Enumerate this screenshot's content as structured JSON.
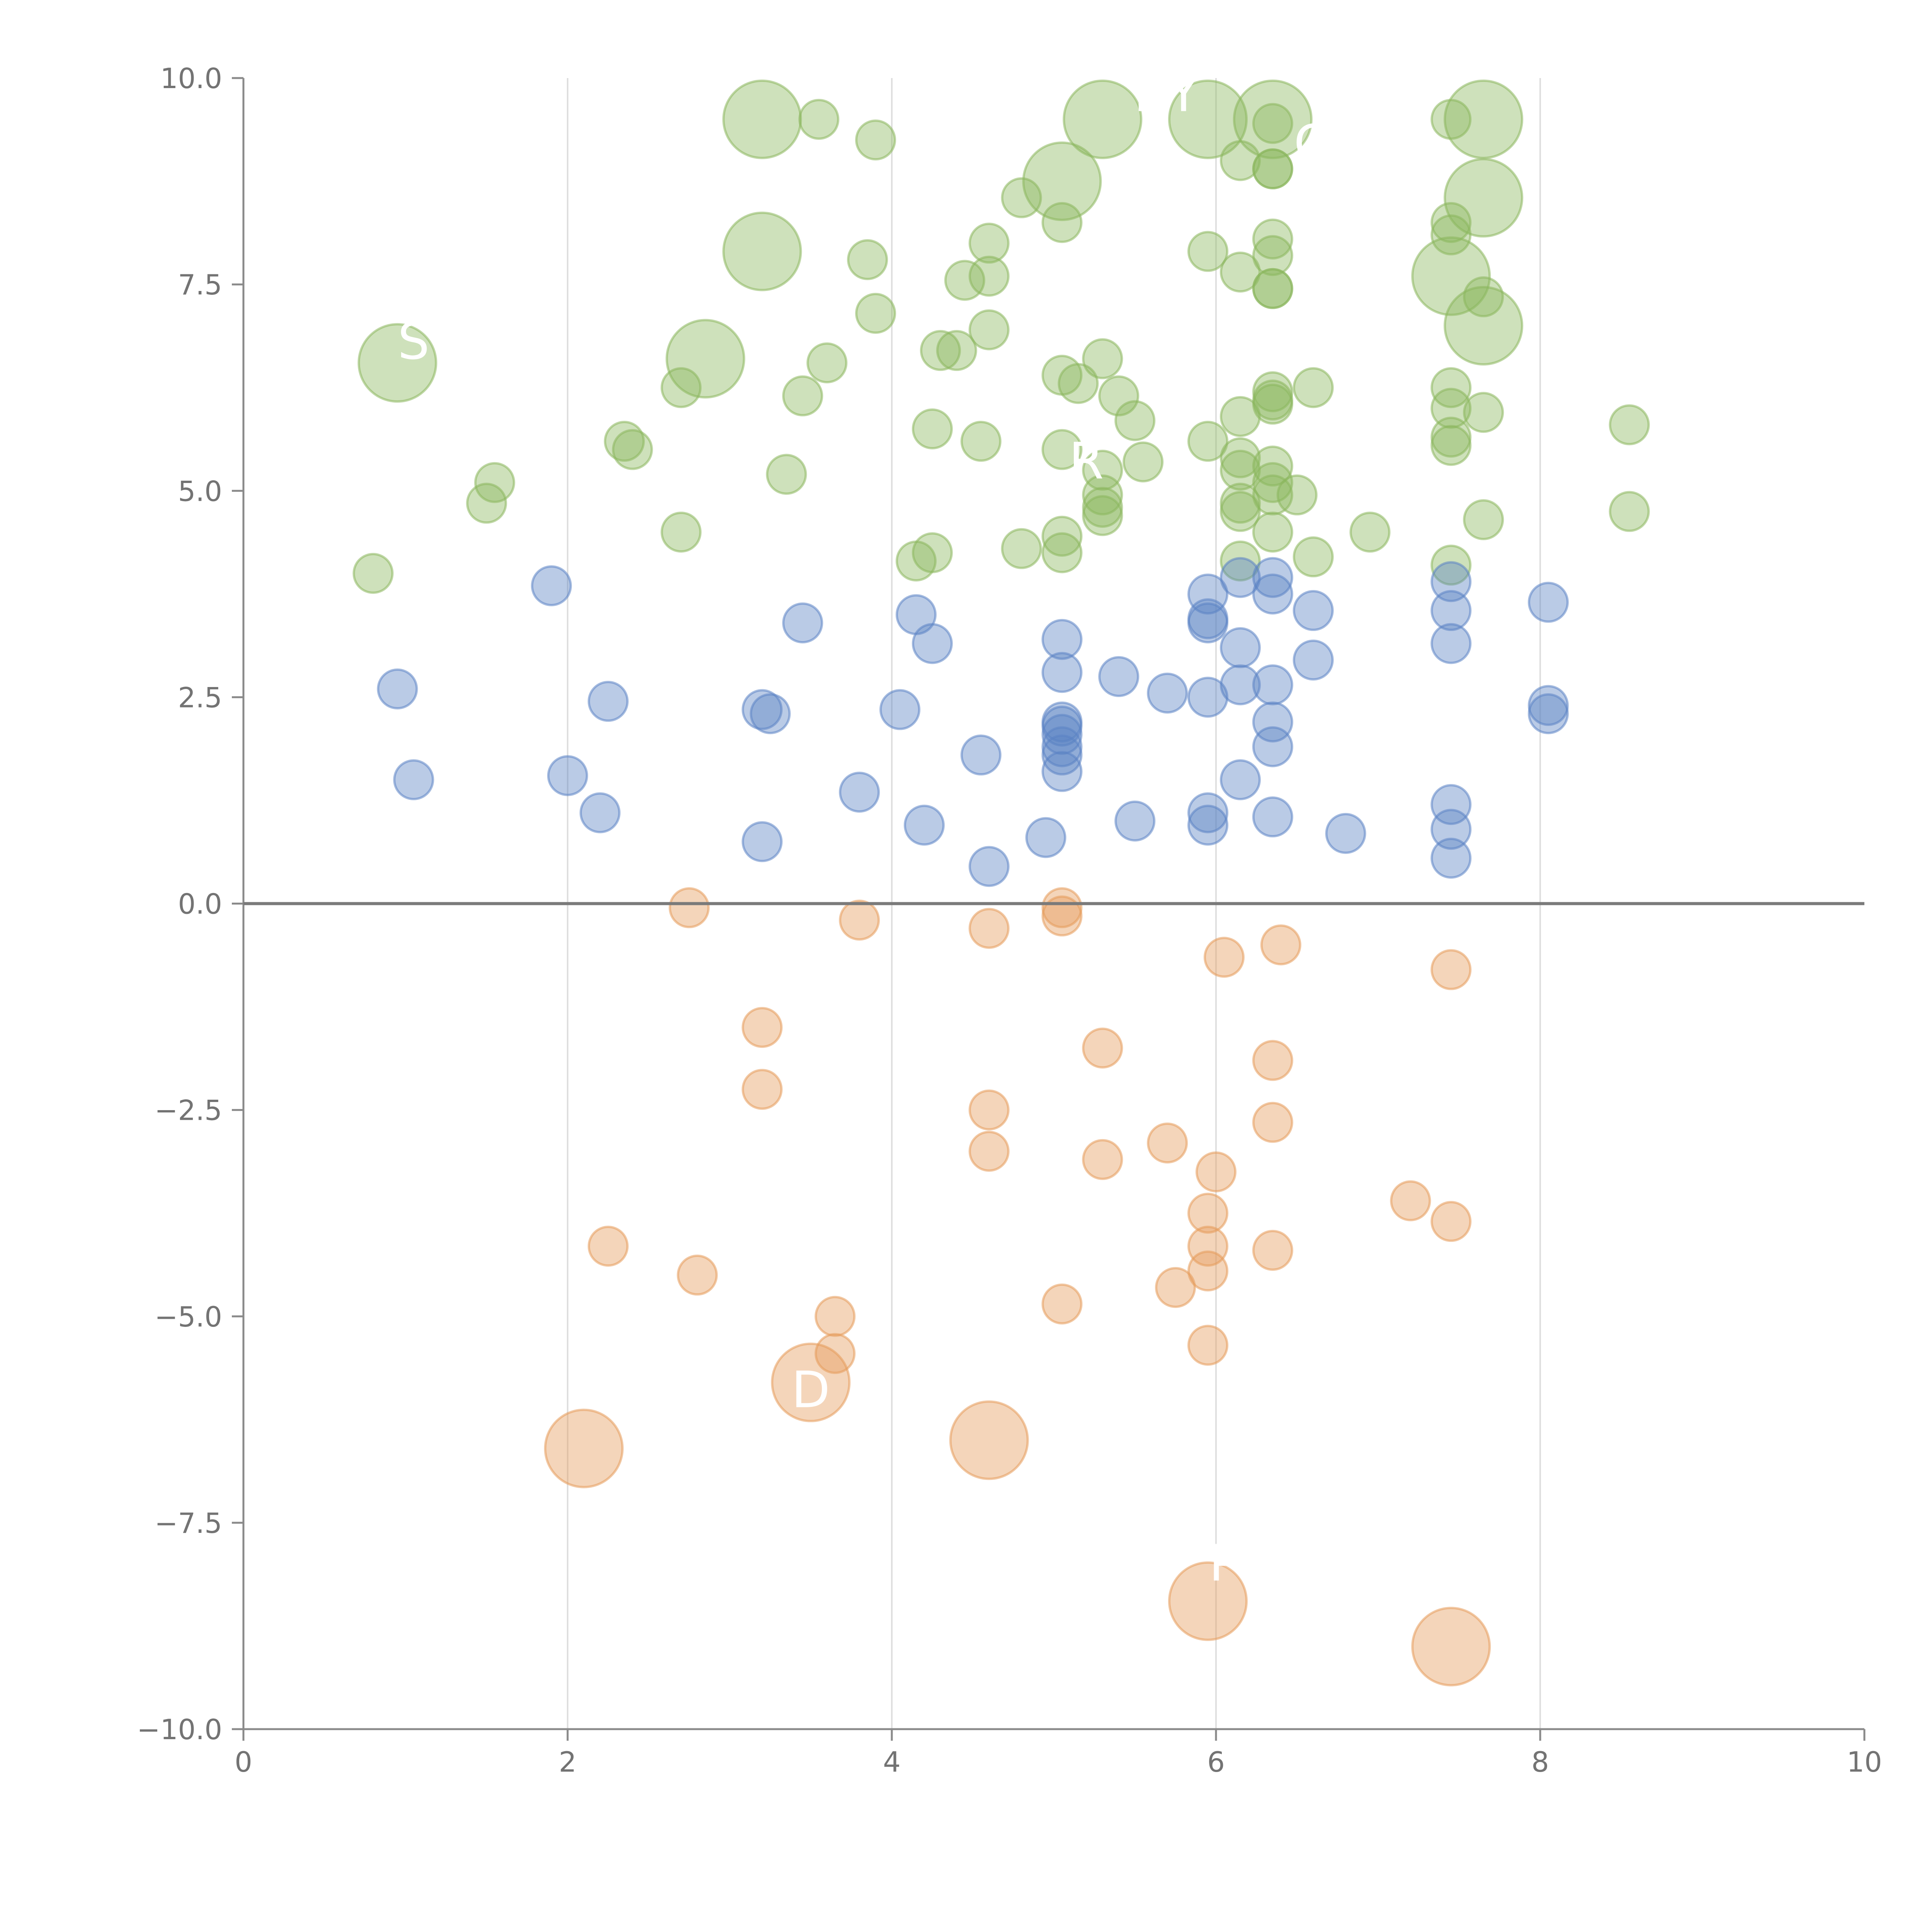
{
  "chart_data": {
    "type": "scatter",
    "title": "",
    "xlabel": "",
    "ylabel": "",
    "xlim": [
      0,
      10
    ],
    "ylim": [
      -10,
      10
    ],
    "x_ticks": [
      "0",
      "2",
      "4",
      "6",
      "8",
      "10"
    ],
    "y_ticks": [
      "−10.0",
      "−7.5",
      "−5.0",
      "−2.5",
      "0.0",
      "2.5",
      "5.0",
      "7.5",
      "10.0"
    ],
    "vertical_gridlines_at": [
      2,
      4,
      6,
      8
    ],
    "zero_line": true,
    "colors": {
      "green": "#8ab75c",
      "blue": "#5b84c4",
      "orange": "#e59a5a"
    },
    "series": [
      {
        "color": "green",
        "points": [
          [
            3.2,
            9.5,
            2
          ],
          [
            3.55,
            9.5,
            1
          ],
          [
            3.9,
            9.25,
            1
          ],
          [
            5.3,
            9.5,
            2
          ],
          [
            5.95,
            9.5,
            2
          ],
          [
            6.35,
            9.5,
            2
          ],
          [
            6.35,
            9.45,
            1
          ],
          [
            7.45,
            9.5,
            1
          ],
          [
            7.65,
            9.5,
            2
          ],
          [
            6.15,
            9.0,
            1
          ],
          [
            6.35,
            8.9,
            1
          ],
          [
            6.35,
            8.9,
            1
          ],
          [
            5.05,
            8.75,
            2
          ],
          [
            4.8,
            8.55,
            1
          ],
          [
            7.65,
            8.55,
            2
          ],
          [
            5.05,
            8.25,
            1
          ],
          [
            7.45,
            8.25,
            1
          ],
          [
            7.45,
            8.1,
            1
          ],
          [
            6.35,
            8.05,
            1
          ],
          [
            4.6,
            8.0,
            1
          ],
          [
            3.2,
            7.9,
            2
          ],
          [
            5.95,
            7.9,
            1
          ],
          [
            3.85,
            7.8,
            1
          ],
          [
            6.35,
            7.85,
            1
          ],
          [
            6.15,
            7.65,
            1
          ],
          [
            7.45,
            7.6,
            2
          ],
          [
            4.45,
            7.55,
            1
          ],
          [
            4.6,
            7.6,
            1
          ],
          [
            6.35,
            7.45,
            1
          ],
          [
            6.35,
            7.45,
            1
          ],
          [
            7.65,
            7.35,
            1
          ],
          [
            3.9,
            7.15,
            1
          ],
          [
            7.65,
            7.0,
            2
          ],
          [
            4.6,
            6.95,
            1
          ],
          [
            4.3,
            6.7,
            1
          ],
          [
            4.4,
            6.7,
            1
          ],
          [
            0.95,
            6.55,
            2
          ],
          [
            2.85,
            6.6,
            2
          ],
          [
            3.6,
            6.55,
            1
          ],
          [
            5.3,
            6.6,
            1
          ],
          [
            5.05,
            6.4,
            1
          ],
          [
            5.15,
            6.3,
            1
          ],
          [
            2.7,
            6.25,
            1
          ],
          [
            6.6,
            6.25,
            1
          ],
          [
            7.45,
            6.25,
            1
          ],
          [
            6.35,
            6.2,
            1
          ],
          [
            3.45,
            6.15,
            1
          ],
          [
            5.4,
            6.15,
            1
          ],
          [
            6.35,
            6.05,
            1
          ],
          [
            6.35,
            6.1,
            1
          ],
          [
            7.45,
            6.0,
            1
          ],
          [
            7.65,
            5.95,
            1
          ],
          [
            6.15,
            5.9,
            1
          ],
          [
            5.5,
            5.85,
            1
          ],
          [
            8.55,
            5.8,
            1
          ],
          [
            4.25,
            5.75,
            1
          ],
          [
            7.45,
            5.65,
            1
          ],
          [
            2.35,
            5.6,
            1
          ],
          [
            4.55,
            5.6,
            1
          ],
          [
            5.95,
            5.6,
            1
          ],
          [
            2.4,
            5.5,
            1
          ],
          [
            5.05,
            5.5,
            1
          ],
          [
            7.45,
            5.55,
            1
          ],
          [
            5.55,
            5.35,
            1
          ],
          [
            6.15,
            5.4,
            1
          ],
          [
            6.15,
            5.25,
            1
          ],
          [
            6.35,
            5.3,
            1
          ],
          [
            5.3,
            5.25,
            1
          ],
          [
            3.35,
            5.2,
            1
          ],
          [
            1.55,
            5.1,
            1
          ],
          [
            6.35,
            5.1,
            1
          ],
          [
            5.3,
            4.95,
            1
          ],
          [
            6.35,
            4.95,
            1
          ],
          [
            6.5,
            4.95,
            1
          ],
          [
            1.5,
            4.85,
            1
          ],
          [
            6.15,
            4.85,
            1
          ],
          [
            6.15,
            4.75,
            1
          ],
          [
            5.3,
            4.8,
            1
          ],
          [
            5.3,
            4.7,
            1
          ],
          [
            8.55,
            4.75,
            1
          ],
          [
            7.65,
            4.65,
            1
          ],
          [
            2.7,
            4.5,
            1
          ],
          [
            6.35,
            4.5,
            1
          ],
          [
            6.95,
            4.5,
            1
          ],
          [
            5.05,
            4.45,
            1
          ],
          [
            4.8,
            4.3,
            1
          ],
          [
            5.05,
            4.25,
            1
          ],
          [
            4.25,
            4.25,
            1
          ],
          [
            4.15,
            4.15,
            1
          ],
          [
            6.15,
            4.15,
            1
          ],
          [
            6.6,
            4.2,
            1
          ],
          [
            7.45,
            4.1,
            1
          ],
          [
            0.8,
            4.0,
            1
          ]
        ]
      },
      {
        "color": "blue",
        "points": [
          [
            1.9,
            3.85,
            1
          ],
          [
            6.35,
            3.95,
            1
          ],
          [
            6.15,
            3.95,
            1
          ],
          [
            7.45,
            3.9,
            1
          ],
          [
            5.95,
            3.75,
            1
          ],
          [
            6.35,
            3.75,
            1
          ],
          [
            8.05,
            3.65,
            1
          ],
          [
            6.6,
            3.55,
            1
          ],
          [
            7.45,
            3.55,
            1
          ],
          [
            4.15,
            3.5,
            1
          ],
          [
            5.95,
            3.45,
            1
          ],
          [
            5.95,
            3.4,
            1
          ],
          [
            3.45,
            3.4,
            1
          ],
          [
            4.25,
            3.15,
            1
          ],
          [
            5.05,
            3.2,
            1
          ],
          [
            7.45,
            3.15,
            1
          ],
          [
            6.15,
            3.1,
            1
          ],
          [
            6.6,
            2.95,
            1
          ],
          [
            5.05,
            2.8,
            1
          ],
          [
            5.4,
            2.75,
            1
          ],
          [
            6.35,
            2.65,
            1
          ],
          [
            6.15,
            2.65,
            1
          ],
          [
            0.95,
            2.6,
            1
          ],
          [
            5.7,
            2.55,
            1
          ],
          [
            5.95,
            2.5,
            1
          ],
          [
            2.25,
            2.45,
            1
          ],
          [
            8.05,
            2.4,
            1
          ],
          [
            8.05,
            2.3,
            1
          ],
          [
            3.2,
            2.35,
            1
          ],
          [
            3.25,
            2.3,
            1
          ],
          [
            4.05,
            2.35,
            1
          ],
          [
            6.35,
            2.2,
            1
          ],
          [
            5.05,
            2.2,
            1
          ],
          [
            5.05,
            2.15,
            1
          ],
          [
            5.05,
            2.05,
            1
          ],
          [
            5.05,
            1.9,
            1
          ],
          [
            6.35,
            1.9,
            1
          ],
          [
            4.55,
            1.8,
            1
          ],
          [
            5.05,
            1.8,
            1
          ],
          [
            5.05,
            1.6,
            1
          ],
          [
            2.0,
            1.55,
            1
          ],
          [
            1.05,
            1.5,
            1
          ],
          [
            6.15,
            1.5,
            1
          ],
          [
            3.8,
            1.35,
            1
          ],
          [
            7.45,
            1.2,
            1
          ],
          [
            5.95,
            1.1,
            1
          ],
          [
            2.2,
            1.1,
            1
          ],
          [
            6.35,
            1.05,
            1
          ],
          [
            5.5,
            1.0,
            1
          ],
          [
            5.95,
            0.95,
            1
          ],
          [
            4.2,
            0.95,
            1
          ],
          [
            7.45,
            0.9,
            1
          ],
          [
            6.8,
            0.85,
            1
          ],
          [
            4.95,
            0.8,
            1
          ],
          [
            3.2,
            0.75,
            1
          ],
          [
            7.45,
            0.55,
            1
          ],
          [
            4.6,
            0.45,
            1
          ]
        ]
      },
      {
        "color": "orange",
        "points": [
          [
            2.75,
            -0.05,
            1
          ],
          [
            5.05,
            -0.05,
            1
          ],
          [
            5.05,
            -0.15,
            1
          ],
          [
            3.8,
            -0.2,
            1
          ],
          [
            4.6,
            -0.3,
            1
          ],
          [
            6.4,
            -0.5,
            1
          ],
          [
            6.05,
            -0.65,
            1
          ],
          [
            7.45,
            -0.8,
            1
          ],
          [
            3.2,
            -1.5,
            1
          ],
          [
            5.3,
            -1.75,
            1
          ],
          [
            6.35,
            -1.9,
            1
          ],
          [
            3.2,
            -2.25,
            1
          ],
          [
            4.6,
            -2.5,
            1
          ],
          [
            6.35,
            -2.65,
            1
          ],
          [
            5.7,
            -2.9,
            1
          ],
          [
            4.6,
            -3.0,
            1
          ],
          [
            5.3,
            -3.1,
            1
          ],
          [
            6.0,
            -3.25,
            1
          ],
          [
            7.2,
            -3.6,
            1
          ],
          [
            5.95,
            -3.75,
            1
          ],
          [
            7.45,
            -3.85,
            1
          ],
          [
            5.95,
            -4.15,
            1
          ],
          [
            2.25,
            -4.15,
            1
          ],
          [
            6.35,
            -4.2,
            1
          ],
          [
            5.95,
            -4.45,
            1
          ],
          [
            2.8,
            -4.5,
            1
          ],
          [
            5.75,
            -4.65,
            1
          ],
          [
            5.05,
            -4.85,
            1
          ],
          [
            3.65,
            -5.0,
            1
          ],
          [
            5.95,
            -5.35,
            1
          ],
          [
            3.65,
            -5.45,
            1
          ],
          [
            3.5,
            -5.8,
            2
          ],
          [
            2.1,
            -6.6,
            2
          ],
          [
            4.6,
            -6.5,
            2
          ],
          [
            5.95,
            -8.45,
            2
          ],
          [
            7.45,
            -9.0,
            2
          ]
        ]
      }
    ],
    "point_labels": [
      {
        "text": "R",
        "x": 5.6,
        "y": 9.6
      },
      {
        "text": "Y",
        "x": 5.8,
        "y": 9.6
      },
      {
        "text": "G",
        "x": 6.6,
        "y": 9.0
      },
      {
        "text": "S",
        "x": 1.05,
        "y": 6.6
      },
      {
        "text": "R",
        "x": 5.2,
        "y": 5.15
      },
      {
        "text": "D",
        "x": 3.5,
        "y": -6.1
      },
      {
        "text": "P",
        "x": 6.05,
        "y": -8.2
      }
    ]
  }
}
